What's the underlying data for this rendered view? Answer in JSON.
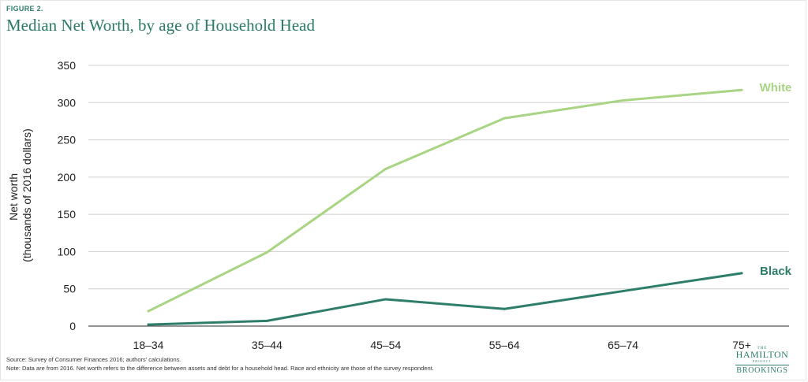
{
  "figure_label": "FIGURE 2.",
  "chart_data": {
    "type": "line",
    "title": "Median Net Worth, by age of Household Head",
    "ylabel_line1": "Net worth",
    "ylabel_line2": "(thousands of 2016 dollars)",
    "xlabel": "",
    "categories": [
      "18–34",
      "35–44",
      "45–54",
      "55–64",
      "65–74",
      "75+"
    ],
    "ylim": [
      0,
      350
    ],
    "yticks": [
      0,
      50,
      100,
      150,
      200,
      250,
      300,
      350
    ],
    "grid": true,
    "legend": "inline-right",
    "series": [
      {
        "name": "White",
        "color": "#a8d483",
        "values": [
          20,
          99,
          211,
          279,
          303,
          317
        ]
      },
      {
        "name": "Black",
        "color": "#2e7d6b",
        "values": [
          2,
          7,
          36,
          23,
          47,
          71
        ]
      }
    ]
  },
  "source_note": "Source: Survey of Consumer Finances 2016; authors' calculations.",
  "data_note": "Note: Data are from 2016. Net worth refers to the difference between assets and debt for a household head. Race and ethnicity are those of the survey respondent.",
  "logo": {
    "the": "THE",
    "hamilton": "HAMILTON",
    "project": "PROJECT",
    "brookings": "BROOKINGS"
  }
}
